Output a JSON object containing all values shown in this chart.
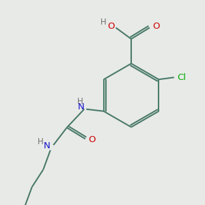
{
  "background_color": "#e8eae8",
  "bond_color": "#4a7a6a",
  "bond_width": 1.5,
  "atom_colors": {
    "C": "#4a7a6a",
    "N": "#1010cc",
    "O": "#cc0000",
    "Cl": "#00aa00",
    "H": "#707070"
  },
  "font_size": 9.5,
  "font_size_small": 8.5
}
